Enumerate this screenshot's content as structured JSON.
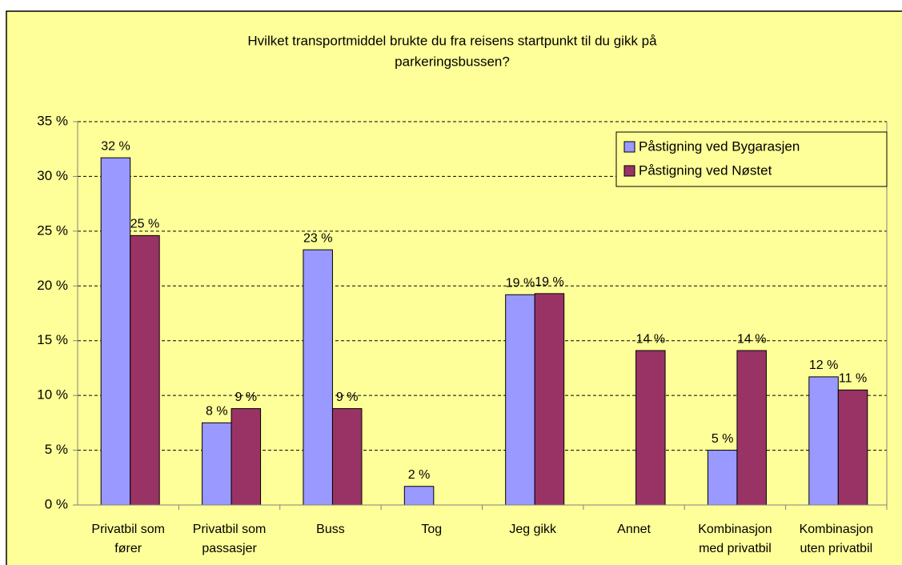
{
  "chart_data": {
    "type": "bar",
    "title": [
      "Hvilket transportmiddel brukte du fra reisens startpunkt til du gikk på",
      "parkeringsbussen?"
    ],
    "categories": [
      [
        "Privatbil som",
        "fører"
      ],
      [
        "Privatbil som",
        "passasjer"
      ],
      [
        "Buss"
      ],
      [
        "Tog"
      ],
      [
        "Jeg gikk"
      ],
      [
        "Annet"
      ],
      [
        "Kombinasjon",
        "med privatbil"
      ],
      [
        "Kombinasjon",
        "uten privatbil"
      ]
    ],
    "series": [
      {
        "name": "Påstigning ved Bygarasjen",
        "color": "#9999ff",
        "values": [
          31.7,
          7.5,
          23.3,
          1.7,
          19.2,
          null,
          5,
          11.7
        ],
        "value_labels": [
          "32 %",
          "8 %",
          "23 %",
          "2 %",
          "19 %",
          null,
          "5 %",
          "12 %"
        ]
      },
      {
        "name": "Påstigning ved Nøstet",
        "color": "#993366",
        "values": [
          24.6,
          8.8,
          8.8,
          null,
          19.3,
          14.1,
          14.1,
          10.5
        ],
        "value_labels": [
          "25 %",
          "9 %",
          "9 %",
          null,
          "19 %",
          "14 %",
          "14 %",
          "11 %"
        ]
      }
    ],
    "ylim": [
      0,
      35
    ],
    "yticks": [
      {
        "value": 0,
        "label": "0 %"
      },
      {
        "value": 5,
        "label": "5 %"
      },
      {
        "value": 10,
        "label": "10 %"
      },
      {
        "value": 15,
        "label": "15 %"
      },
      {
        "value": 20,
        "label": "20 %"
      },
      {
        "value": 25,
        "label": "25 %"
      },
      {
        "value": 30,
        "label": "30 %"
      },
      {
        "value": 35,
        "label": "35 %"
      }
    ],
    "grid": true,
    "legend": "top-right"
  }
}
